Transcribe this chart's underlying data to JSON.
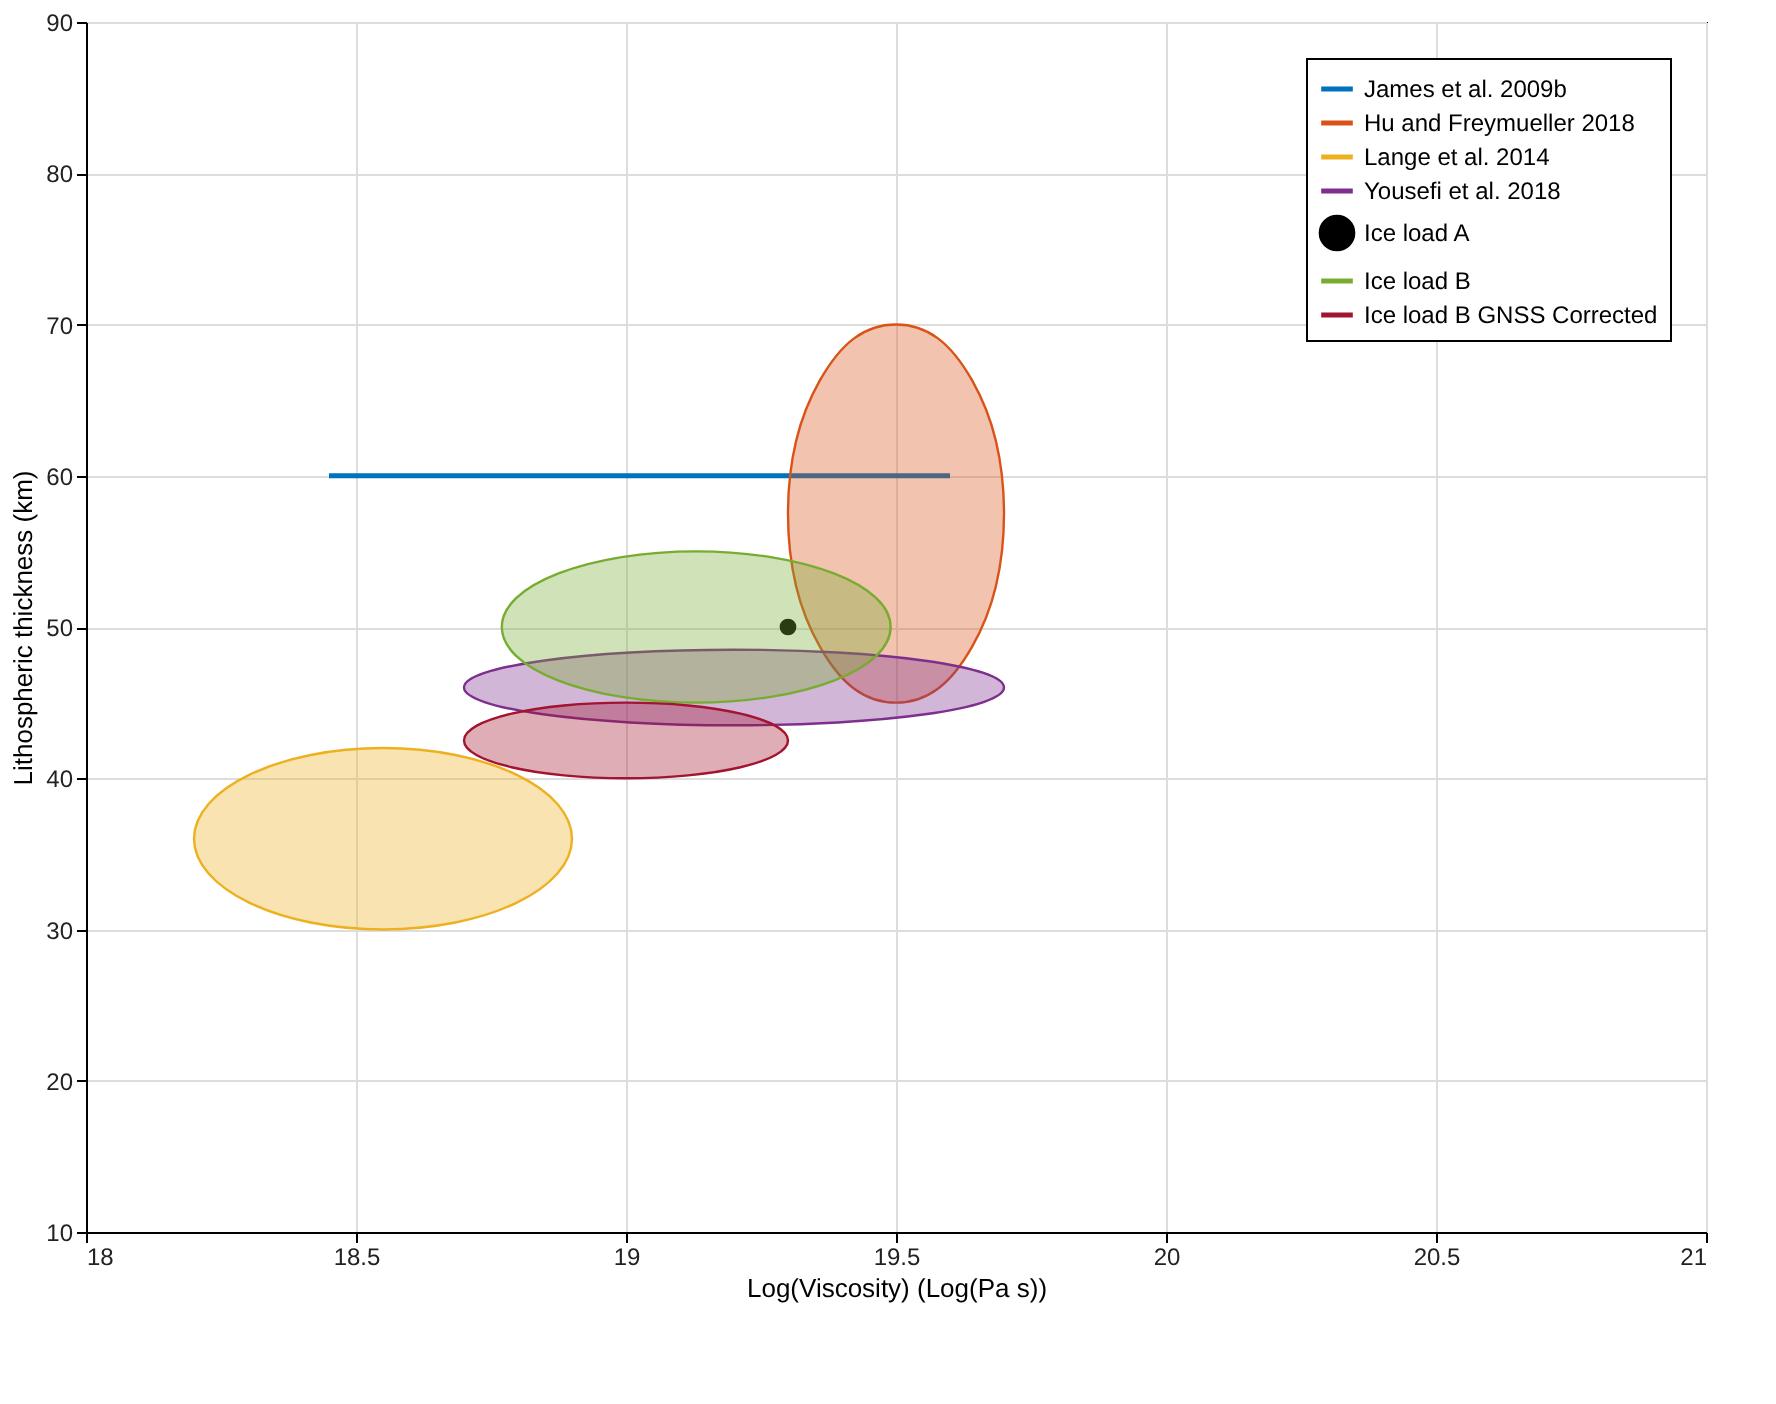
{
  "chart_data": {
    "type": "scatter",
    "xlabel": "Log(Viscosity) (Log(Pa s))",
    "ylabel": "Lithospheric thickness (km)",
    "xlim": [
      18,
      21
    ],
    "xticks": [
      18,
      18.5,
      19,
      19.5,
      20,
      20.5,
      21
    ],
    "ylim": [
      10,
      90
    ],
    "yticks": [
      10,
      20,
      30,
      40,
      50,
      60,
      70,
      80,
      90
    ],
    "grid": true,
    "legend": "top right",
    "series": [
      {
        "name": "James et al. 2009b",
        "type": "line",
        "color": "#0072bd",
        "x": [
          18.45,
          19.6
        ],
        "values": [
          60,
          60
        ]
      },
      {
        "name": "Hu and Freymueller 2018",
        "type": "area",
        "color": "#d95319",
        "x": [
          19.7,
          19.685,
          19.641,
          19.577,
          19.5,
          19.423,
          19.359,
          19.315,
          19.3,
          19.315,
          19.359,
          19.423,
          19.5,
          19.577,
          19.641,
          19.685
        ],
        "values": [
          57.5,
          62.3,
          66.3,
          69.1,
          70,
          69.1,
          66.3,
          62.3,
          57.5,
          52.7,
          48.7,
          45.9,
          45,
          45.9,
          48.7,
          52.7
        ]
      },
      {
        "name": "Lange et al. 2014",
        "type": "area",
        "color": "#edb120",
        "x": [
          18.9,
          18.873,
          18.797,
          18.684,
          18.55,
          18.416,
          18.303,
          18.227,
          18.2,
          18.227,
          18.303,
          18.416,
          18.55,
          18.684,
          18.797,
          18.873
        ],
        "values": [
          36,
          38.3,
          40.24,
          41.54,
          42,
          41.54,
          40.24,
          38.3,
          36,
          33.7,
          31.76,
          30.46,
          30,
          30.46,
          31.76,
          33.7
        ]
      },
      {
        "name": "Yousefi et al. 2018",
        "type": "area",
        "color": "#7e2f8e",
        "x": [
          19.7,
          19.662,
          19.554,
          19.392,
          19.2,
          19.008,
          18.846,
          18.738,
          18.7,
          18.738,
          18.846,
          19.008,
          19.2,
          19.392,
          19.554,
          19.662
        ],
        "values": [
          46,
          46.96,
          47.77,
          48.31,
          48.5,
          48.31,
          47.77,
          46.96,
          46,
          45.04,
          44.23,
          43.69,
          43.5,
          43.69,
          44.23,
          45.04
        ]
      },
      {
        "name": "Ice load A",
        "color": "#000000",
        "marker": "circle",
        "x": [
          19.3
        ],
        "values": [
          50
        ]
      },
      {
        "name": "Ice load B",
        "type": "area",
        "color": "#77ac30",
        "x": [
          19.49,
          19.463,
          19.385,
          19.268,
          19.13,
          18.992,
          18.875,
          18.797,
          18.77,
          18.797,
          18.875,
          18.992,
          19.13,
          19.268,
          19.385,
          19.463
        ],
        "values": [
          50,
          51.92,
          53.54,
          54.62,
          55,
          54.62,
          53.54,
          51.92,
          50,
          48.08,
          46.46,
          45.38,
          45,
          45.38,
          46.46,
          48.08
        ]
      },
      {
        "name": "Ice load B GNSS Corrected",
        "type": "area",
        "color": "#a2142f",
        "x": [
          19.3,
          19.277,
          19.212,
          19.115,
          19,
          18.885,
          18.788,
          18.723,
          18.7,
          18.723,
          18.788,
          18.885,
          19,
          19.115,
          19.212,
          19.277
        ],
        "values": [
          42.5,
          43.46,
          44.27,
          44.81,
          45,
          44.81,
          44.27,
          43.46,
          42.5,
          41.54,
          40.73,
          40.19,
          40,
          40.19,
          40.73,
          41.54
        ]
      }
    ]
  }
}
